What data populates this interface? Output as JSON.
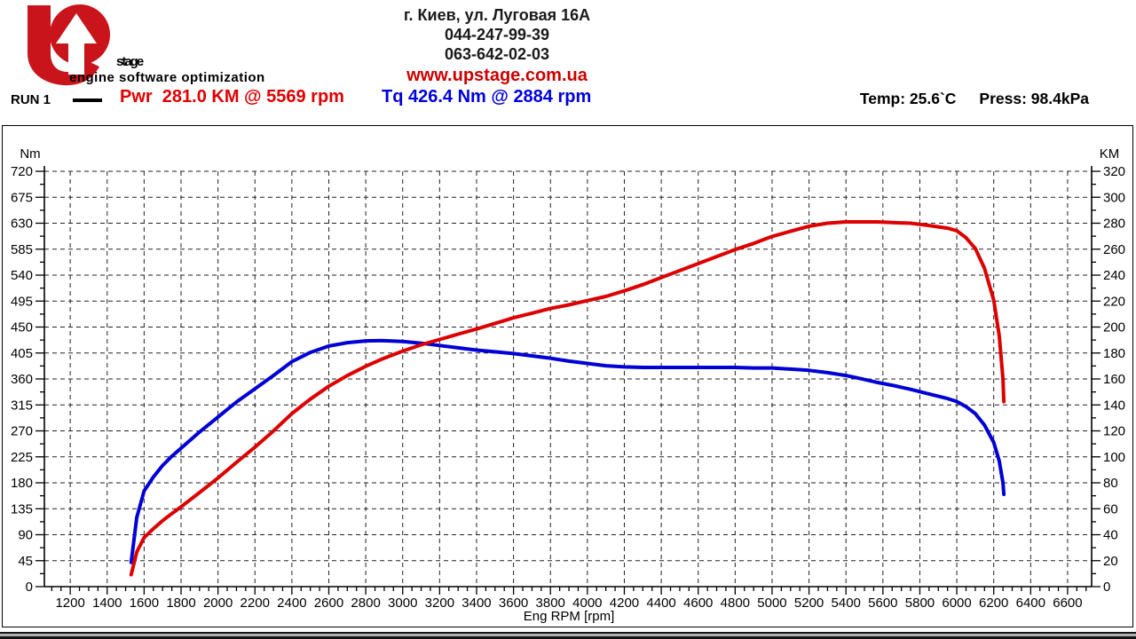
{
  "header": {
    "logo": {
      "brand_rest": "stage",
      "tagline": "engine software optimization",
      "red": "#c8141a",
      "charcoal": "#3a4047"
    },
    "contact": {
      "address": "г. Киев, ул. Луговая 16А",
      "phone1": "044-247-99-39",
      "phone2": "063-642-02-03",
      "website": "www.upstage.com.ua",
      "website_color": "#cc0000"
    },
    "run_label": "RUN 1",
    "power_readout": "Pwr  281.0 KM @ 5569 rpm",
    "torque_readout": "Tq 426.4 Nm @ 2884 rpm",
    "temp_readout": "Temp: 25.6`C",
    "press_readout": "Press: 98.4kPa",
    "power_color": "#e00000",
    "torque_color": "#0000dd"
  },
  "chart_data": {
    "type": "line",
    "xlabel": "Eng RPM [rpm]",
    "grid": "dashed",
    "grid_color": "#222222",
    "x_axis": {
      "min": 1060,
      "max": 6730,
      "minor_step": 50,
      "ticks": [
        1200,
        1400,
        1600,
        1800,
        2000,
        2200,
        2400,
        2600,
        2800,
        3000,
        3200,
        3400,
        3600,
        3800,
        4000,
        4200,
        4400,
        4600,
        4800,
        5000,
        5200,
        5400,
        5600,
        5800,
        6000,
        6200,
        6400,
        6600
      ]
    },
    "left_axis": {
      "label": "Nm",
      "min": 0,
      "max": 720,
      "tick_step": 45,
      "minor_step": 22.5,
      "ticks": [
        720,
        675,
        630,
        585,
        540,
        495,
        450,
        405,
        360,
        315,
        270,
        225,
        180,
        135,
        90,
        45,
        0
      ]
    },
    "right_axis": {
      "label": "KM",
      "min": 0,
      "max": 320,
      "tick_step": 20,
      "minor_step": 10,
      "ticks": [
        320,
        300,
        280,
        260,
        240,
        220,
        200,
        180,
        160,
        140,
        120,
        100,
        80,
        60,
        40,
        20,
        0
      ]
    },
    "rpm": [
      1530,
      1560,
      1600,
      1650,
      1700,
      1750,
      1800,
      1900,
      2000,
      2100,
      2200,
      2300,
      2400,
      2500,
      2600,
      2700,
      2800,
      2884,
      3000,
      3100,
      3200,
      3300,
      3400,
      3500,
      3600,
      3700,
      3800,
      3900,
      4000,
      4100,
      4200,
      4300,
      4400,
      4500,
      4600,
      4700,
      4800,
      4900,
      5000,
      5100,
      5200,
      5300,
      5400,
      5500,
      5569,
      5650,
      5750,
      5850,
      5950,
      6000,
      6050,
      6100,
      6150,
      6200,
      6230,
      6250,
      6255
    ],
    "series": [
      {
        "name": "Torque",
        "axis": "left",
        "color": "#0000d6",
        "peak": "426.4 Nm @ 2884 rpm",
        "values": [
          42,
          120,
          166,
          190,
          210,
          226,
          240,
          268,
          294,
          320,
          343,
          366,
          390,
          406,
          417,
          423,
          426,
          426.4,
          425,
          422,
          418,
          414,
          410,
          407,
          404,
          400,
          396,
          391,
          387,
          383,
          381,
          380,
          380,
          380,
          380,
          380,
          380,
          379,
          379,
          377,
          375,
          371,
          366,
          359,
          354,
          349,
          342,
          334,
          326,
          321,
          312,
          300,
          280,
          250,
          218,
          180,
          160
        ]
      },
      {
        "name": "Power",
        "axis": "right",
        "color": "#dd0000",
        "peak": "281.0 KM @ 5569 rpm",
        "values": [
          9.2,
          26.7,
          37.8,
          44.6,
          50.8,
          56.3,
          61.5,
          72.5,
          83.7,
          95.7,
          107.4,
          119.9,
          133.3,
          144.5,
          154.4,
          162.6,
          169.8,
          175.1,
          181.5,
          186.3,
          190.4,
          194.5,
          198.5,
          202.8,
          207.1,
          210.7,
          214.3,
          217.1,
          220.4,
          223.6,
          227.9,
          232.7,
          238.1,
          243.5,
          248.9,
          254.3,
          259.7,
          264.4,
          269.8,
          273.8,
          277.7,
          280.0,
          281.0,
          281.0,
          281.0,
          280.5,
          280.0,
          278.2,
          276.2,
          274.2,
          268.8,
          260.6,
          245.2,
          220.7,
          193.4,
          160.2,
          142.5
        ]
      }
    ]
  }
}
